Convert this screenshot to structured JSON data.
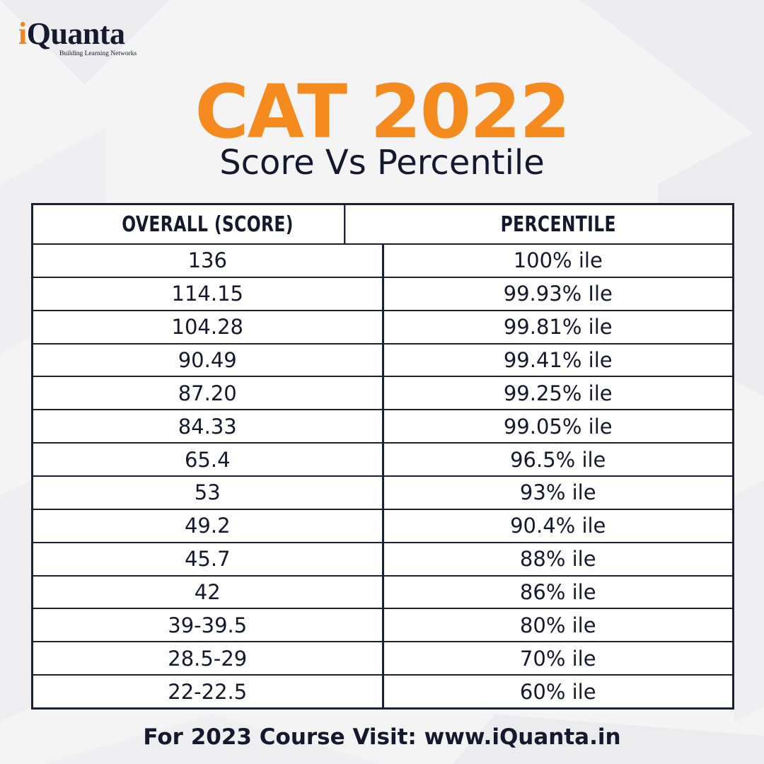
{
  "brand": {
    "name_first_letter": "i",
    "name_rest": "Quanta",
    "tagline": "Building Learning Networks",
    "accent_color": "#f58a1f",
    "dark_color": "#14192e"
  },
  "title": "CAT 2022",
  "subtitle": "Score Vs Percentile",
  "table": {
    "headers": [
      "OVERALL (SCORE)",
      "PERCENTILE"
    ],
    "rows": [
      {
        "score": "136",
        "percentile": "100% ile"
      },
      {
        "score": "114.15",
        "percentile": "99.93% Ile"
      },
      {
        "score": "104.28",
        "percentile": "99.81% ile"
      },
      {
        "score": "90.49",
        "percentile": "99.41% ile"
      },
      {
        "score": "87.20",
        "percentile": "99.25% ile"
      },
      {
        "score": "84.33",
        "percentile": "99.05% ile"
      },
      {
        "score": "65.4",
        "percentile": "96.5% ile"
      },
      {
        "score": "53",
        "percentile": "93% ile"
      },
      {
        "score": "49.2",
        "percentile": "90.4% ile"
      },
      {
        "score": "45.7",
        "percentile": "88% ile"
      },
      {
        "score": "42",
        "percentile": "86% ile"
      },
      {
        "score": "39-39.5",
        "percentile": "80% ile"
      },
      {
        "score": "28.5-29",
        "percentile": "70% ile"
      },
      {
        "score": "22-22.5",
        "percentile": "60% ile"
      }
    ]
  },
  "footer": "For 2023 Course Visit: www.iQuanta.in"
}
